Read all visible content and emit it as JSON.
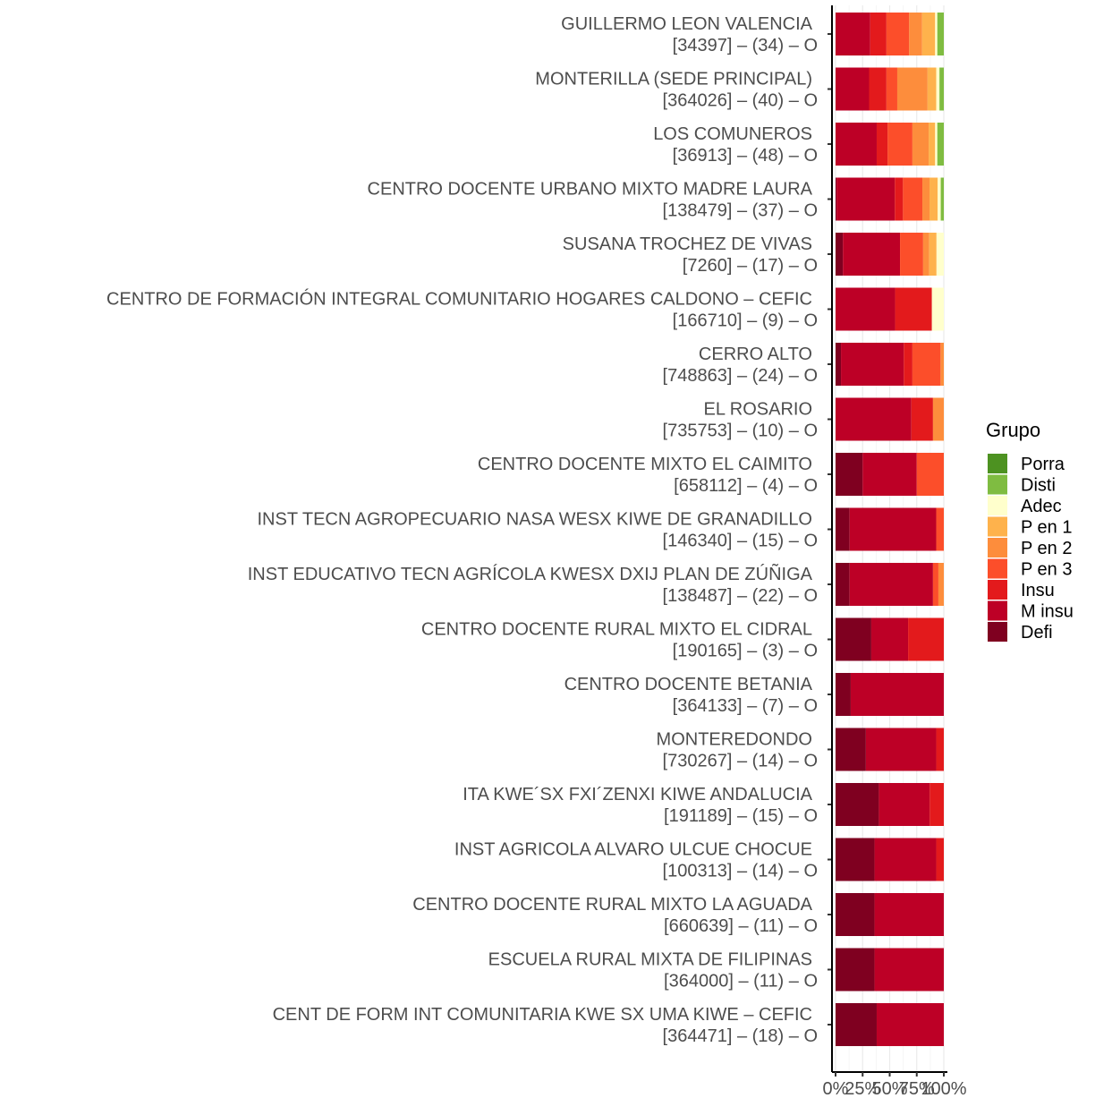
{
  "chart_data": {
    "type": "bar",
    "orientation": "horizontal",
    "stacked": "percent",
    "categories": [
      {
        "name": "GUILLERMO LEON VALENCIA ",
        "sub": "[34397] – (34) – O"
      },
      {
        "name": "MONTERILLA (SEDE PRINCIPAL)",
        "sub": "[364026] – (40) – O"
      },
      {
        "name": "LOS COMUNEROS ",
        "sub": "[36913] – (48) – O"
      },
      {
        "name": "CENTRO DOCENTE URBANO MIXTO MADRE LAURA",
        "sub": "[138479] – (37) – O"
      },
      {
        "name": "SUSANA TROCHEZ DE VIVAS ",
        "sub": "[7260] – (17) – O"
      },
      {
        "name": "CENTRO DE FORMACIÓN INTEGRAL COMUNITARIO HOGARES CALDONO – CEFIC",
        "sub": "[166710] – (9) – O"
      },
      {
        "name": "CERRO ALTO ",
        "sub": "[748863] – (24) – O"
      },
      {
        "name": "EL ROSARIO ",
        "sub": "[735753] – (10) – O"
      },
      {
        "name": "CENTRO DOCENTE MIXTO EL CAIMITO",
        "sub": "[658112] – (4) – O"
      },
      {
        "name": "INST TECN AGROPECUARIO NASA WESX KIWE DE GRANADILLO",
        "sub": "[146340] – (15) – O"
      },
      {
        "name": "INST EDUCATIVO TECN AGRÍCOLA KWESX DXIJ PLAN DE ZÚÑIGA",
        "sub": "[138487] – (22) – O"
      },
      {
        "name": "CENTRO DOCENTE RURAL MIXTO EL CIDRAL",
        "sub": "[190165] – (3) – O"
      },
      {
        "name": "CENTRO DOCENTE BETANIA",
        "sub": "[364133] – (7) – O"
      },
      {
        "name": "MONTEREDONDO ",
        "sub": "[730267] – (14) – O"
      },
      {
        "name": "ITA KWE´SX FXI´ZENXI KIWE ANDALUCIA",
        "sub": "[191189] – (15) – O"
      },
      {
        "name": "INST AGRICOLA ALVARO ULCUE CHOCUE",
        "sub": "[100313] – (14) – O"
      },
      {
        "name": "CENTRO DOCENTE RURAL MIXTO LA AGUADA",
        "sub": "[660639] – (11) – O"
      },
      {
        "name": "ESCUELA RURAL MIXTA DE FILIPINAS",
        "sub": "[364000] – (11) – O"
      },
      {
        "name": "CENT DE FORM INT COMUNITARIA KWE SX UMA KIWE – CEFIC",
        "sub": "[364471] – (18) – O"
      }
    ],
    "series": [
      {
        "name": "Defi",
        "color": "#7f0020",
        "values": [
          0,
          0,
          0,
          1,
          6,
          0,
          5,
          0,
          25,
          13,
          13,
          33,
          14,
          28,
          40,
          36,
          36,
          36,
          38
        ]
      },
      {
        "name": "M insu",
        "color": "#bd0026",
        "values": [
          32,
          31,
          38,
          57,
          47,
          55,
          58,
          70,
          50,
          80,
          77,
          34,
          86,
          65,
          47,
          57,
          64,
          64,
          62
        ]
      },
      {
        "name": "Insu",
        "color": "#e31a1c",
        "values": [
          15,
          16,
          10,
          8,
          0,
          34,
          8,
          20,
          0,
          0,
          0,
          33,
          0,
          7,
          13,
          7,
          0,
          0,
          0
        ]
      },
      {
        "name": "P en 3",
        "color": "#fc4e2a",
        "values": [
          21,
          10,
          23,
          19,
          19,
          0,
          26,
          0,
          25,
          7,
          5,
          0,
          0,
          0,
          0,
          0,
          0,
          0,
          0
        ]
      },
      {
        "name": "P en 2",
        "color": "#fd8d3c",
        "values": [
          12,
          28,
          15,
          7,
          5,
          0,
          3,
          10,
          0,
          0,
          5,
          0,
          0,
          0,
          0,
          0,
          0,
          0,
          0
        ]
      },
      {
        "name": "P en 1",
        "color": "#feb24c",
        "values": [
          12,
          8,
          6,
          8,
          6,
          0,
          0,
          0,
          0,
          0,
          0,
          0,
          0,
          0,
          0,
          0,
          0,
          0,
          0
        ]
      },
      {
        "name": "Adec",
        "color": "#ffffcc",
        "values": [
          2,
          3,
          2,
          3,
          6,
          11,
          0,
          0,
          0,
          0,
          0,
          0,
          0,
          0,
          0,
          0,
          0,
          0,
          0
        ]
      },
      {
        "name": "Disti",
        "color": "#7fbc41",
        "values": [
          6,
          4,
          6,
          3,
          0,
          0,
          0,
          0,
          0,
          0,
          0,
          0,
          0,
          0,
          0,
          0,
          0,
          0,
          0
        ]
      },
      {
        "name": "Porra",
        "color": "#4d9221",
        "values": [
          0,
          0,
          0,
          0,
          0,
          0,
          0,
          0,
          0,
          0,
          0,
          0,
          0,
          0,
          0,
          0,
          0,
          0,
          0
        ]
      }
    ],
    "xlim": [
      0,
      100
    ],
    "x_ticks": [
      "0%",
      "25%",
      "50%",
      "75%",
      "100%"
    ],
    "xlabel": "",
    "ylabel": "",
    "title": "",
    "grid": true,
    "legend": {
      "title": "Grupo",
      "placement": "right",
      "order": [
        "Porra",
        "Disti",
        "Adec",
        "P en 1",
        "P en 2",
        "P en 3",
        "Insu",
        "M insu",
        "Defi"
      ]
    }
  }
}
